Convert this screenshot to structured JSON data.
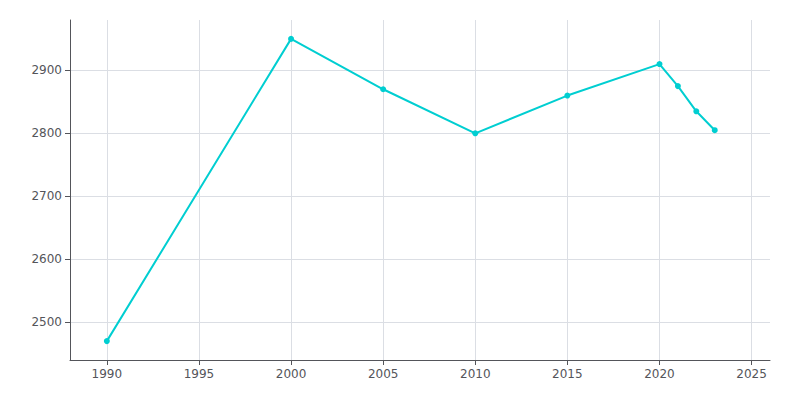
{
  "chart_data": {
    "type": "line",
    "x": [
      1990,
      2000,
      2005,
      2010,
      2015,
      2020,
      2021,
      2022,
      2023
    ],
    "values": [
      2470,
      2950,
      2870,
      2800,
      2860,
      2910,
      2875,
      2835,
      2805
    ],
    "color": "#00CED1",
    "marker": "circle",
    "xlim": [
      1988,
      2026
    ],
    "ylim": [
      2440,
      2980
    ],
    "xticks": [
      1990,
      1995,
      2000,
      2005,
      2010,
      2015,
      2020,
      2025
    ],
    "yticks": [
      2500,
      2600,
      2700,
      2800,
      2900
    ],
    "grid": true
  }
}
